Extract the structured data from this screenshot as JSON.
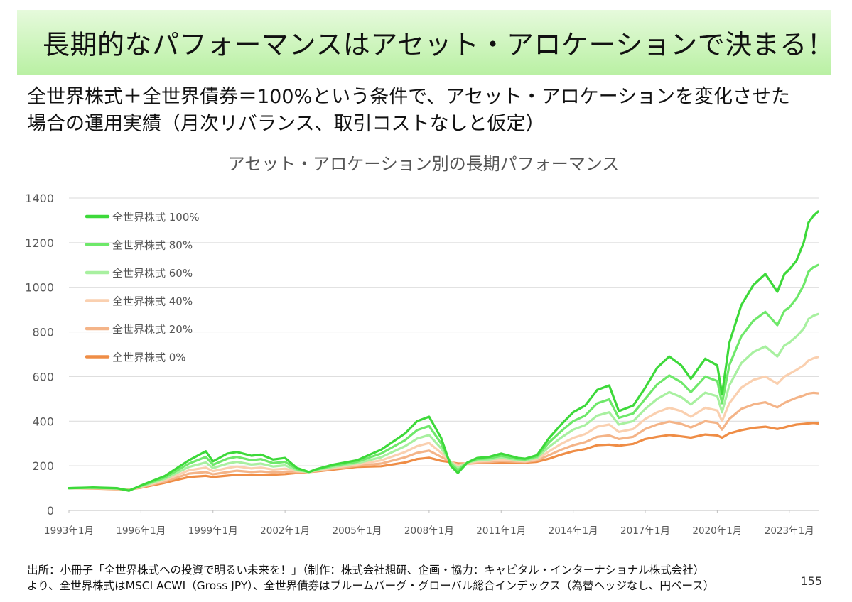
{
  "slide": {
    "title": "長期的なパフォーマンスはアセット・アロケーションで決まる！",
    "subtitle_line1": "全世界株式＋全世界債券＝100%という条件で、アセット・アロケーションを変化させた",
    "subtitle_line2": "場合の運用実績（月次リバランス、取引コストなしと仮定）",
    "source_line1": "出所：小冊子「全世界株式への投資で明るい未来を！」（制作：株式会社想研、企画・協力：キャピタル・インターナショナル株式会社）",
    "source_line2": "より、全世界株式はMSCI ACWI（Gross JPY）、全世界債券はブルームバーグ・グローバル総合インデックス（為替ヘッジなし、円ベース）",
    "page_number": "155"
  },
  "chart_data": {
    "type": "line",
    "title": "アセット・アロケーション別の長期パフォーマンス",
    "xlabel": "",
    "ylabel": "",
    "ylim": [
      0,
      1400
    ],
    "yticks": [
      0,
      200,
      400,
      600,
      800,
      1000,
      1200,
      1400
    ],
    "xticks": [
      "1993年1月",
      "1996年1月",
      "1999年1月",
      "2002年1月",
      "2005年1月",
      "2008年1月",
      "2011年1月",
      "2014年1月",
      "2017年1月",
      "2020年1月",
      "2023年1月"
    ],
    "xlim": [
      1993.0,
      2024.25
    ],
    "grid": true,
    "legend_position": "top-left",
    "x": [
      1993.0,
      1994.0,
      1995.0,
      1995.5,
      1996.0,
      1997.0,
      1998.0,
      1998.7,
      1999.0,
      1999.6,
      2000.0,
      2000.6,
      2001.0,
      2001.5,
      2002.0,
      2002.5,
      2003.0,
      2003.3,
      2004.0,
      2005.0,
      2006.0,
      2007.0,
      2007.5,
      2008.0,
      2008.5,
      2008.9,
      2009.2,
      2009.6,
      2010.0,
      2010.5,
      2011.0,
      2011.7,
      2012.0,
      2012.5,
      2013.0,
      2013.5,
      2014.0,
      2014.5,
      2015.0,
      2015.5,
      2015.9,
      2016.5,
      2017.0,
      2017.5,
      2018.0,
      2018.5,
      2018.9,
      2019.5,
      2020.0,
      2020.2,
      2020.5,
      2021.0,
      2021.5,
      2022.0,
      2022.5,
      2022.8,
      2023.0,
      2023.3,
      2023.6,
      2023.8,
      2024.0,
      2024.2
    ],
    "series": [
      {
        "name": "全世界株式 100%",
        "color": "#3dd93a",
        "values": [
          100,
          103,
          100,
          88,
          112,
          155,
          225,
          265,
          220,
          255,
          262,
          245,
          250,
          228,
          235,
          190,
          172,
          185,
          205,
          225,
          272,
          345,
          400,
          420,
          325,
          200,
          168,
          215,
          235,
          240,
          255,
          235,
          232,
          248,
          325,
          385,
          440,
          470,
          540,
          560,
          445,
          470,
          550,
          640,
          690,
          650,
          590,
          680,
          650,
          520,
          750,
          920,
          1010,
          1060,
          980,
          1060,
          1080,
          1120,
          1200,
          1290,
          1320,
          1340
        ]
      },
      {
        "name": "全世界株式 80%",
        "color": "#6ee86a",
        "values": [
          100,
          102,
          99,
          90,
          110,
          148,
          210,
          240,
          205,
          232,
          240,
          225,
          230,
          212,
          218,
          185,
          172,
          183,
          200,
          218,
          255,
          315,
          360,
          378,
          300,
          210,
          180,
          215,
          230,
          234,
          245,
          230,
          228,
          242,
          305,
          355,
          400,
          425,
          480,
          498,
          415,
          435,
          500,
          565,
          605,
          575,
          530,
          600,
          580,
          480,
          650,
          780,
          850,
          890,
          830,
          895,
          910,
          950,
          1010,
          1070,
          1090,
          1100
        ]
      },
      {
        "name": "全世界株式 60%",
        "color": "#a8f0a0",
        "values": [
          100,
          101,
          98,
          91,
          108,
          142,
          195,
          215,
          190,
          210,
          218,
          206,
          210,
          197,
          202,
          180,
          172,
          181,
          195,
          212,
          238,
          288,
          322,
          338,
          278,
          216,
          190,
          214,
          225,
          228,
          236,
          226,
          224,
          236,
          285,
          326,
          362,
          382,
          425,
          440,
          385,
          400,
          455,
          500,
          530,
          508,
          475,
          528,
          512,
          440,
          560,
          660,
          710,
          735,
          690,
          740,
          752,
          780,
          815,
          858,
          872,
          880
        ]
      },
      {
        "name": "全世界株式 40%",
        "color": "#fad0b0",
        "values": [
          100,
          100,
          97,
          92,
          106,
          136,
          180,
          192,
          176,
          190,
          197,
          188,
          192,
          183,
          187,
          176,
          172,
          179,
          191,
          206,
          224,
          262,
          288,
          302,
          258,
          218,
          198,
          212,
          220,
          222,
          228,
          222,
          220,
          230,
          265,
          298,
          325,
          342,
          375,
          385,
          352,
          365,
          410,
          440,
          460,
          445,
          420,
          460,
          448,
          400,
          480,
          550,
          585,
          600,
          568,
          600,
          612,
          630,
          650,
          672,
          682,
          688
        ]
      },
      {
        "name": "全世界株式 20%",
        "color": "#f4b488",
        "values": [
          100,
          99,
          96,
          93,
          104,
          130,
          165,
          172,
          162,
          172,
          178,
          172,
          175,
          170,
          174,
          172,
          172,
          177,
          187,
          200,
          210,
          238,
          258,
          268,
          240,
          218,
          205,
          211,
          216,
          217,
          221,
          218,
          217,
          224,
          248,
          272,
          292,
          306,
          330,
          336,
          320,
          330,
          365,
          385,
          398,
          388,
          372,
          400,
          392,
          362,
          410,
          455,
          475,
          485,
          462,
          482,
          492,
          505,
          515,
          524,
          527,
          525
        ]
      },
      {
        "name": "全世界株式 0%",
        "color": "#ef8d46",
        "values": [
          100,
          98,
          95,
          94,
          102,
          124,
          150,
          155,
          150,
          156,
          160,
          158,
          160,
          160,
          163,
          168,
          172,
          175,
          183,
          195,
          198,
          215,
          230,
          236,
          222,
          216,
          210,
          210,
          212,
          213,
          215,
          214,
          214,
          218,
          232,
          250,
          265,
          275,
          292,
          295,
          290,
          298,
          320,
          330,
          338,
          332,
          326,
          340,
          336,
          326,
          345,
          360,
          370,
          375,
          365,
          372,
          378,
          385,
          388,
          390,
          392,
          390
        ]
      }
    ]
  }
}
